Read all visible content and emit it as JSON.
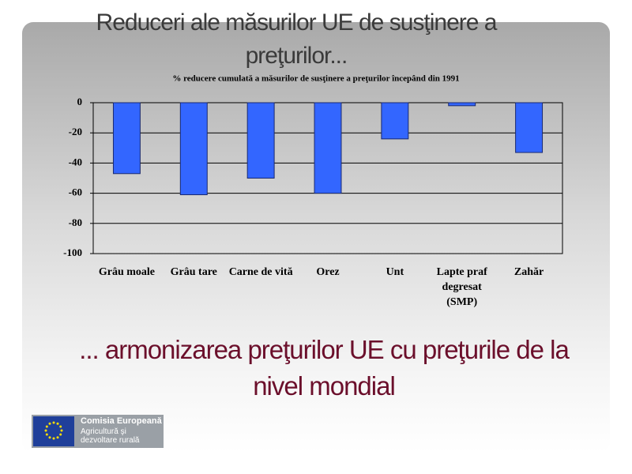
{
  "slide": {
    "title": "Reduceri ale măsurilor UE de susţinere a preţurilor...",
    "caption": "... armonizarea preţurilor UE cu preţurile de la nivel mondial",
    "logo": {
      "name": "Comisia Europeană",
      "lines": [
        "Agricultură şi",
        "dezvoltare rurală"
      ]
    }
  },
  "chart_data": {
    "type": "bar",
    "title": "% reducere cumulată a măsurilor de susţinere a preţurilor începând din 1991",
    "categories": [
      "Grâu moale",
      "Grâu tare",
      "Carne de vită",
      "Orez",
      "Unt",
      "Lapte praf degresat (SMP)",
      "Zahăr"
    ],
    "values": [
      -47,
      -61,
      -50,
      -60,
      -24,
      -2,
      -33
    ],
    "color": "#3366ff",
    "ylim": [
      -100,
      0
    ],
    "yticks": [
      0,
      -20,
      -40,
      -60,
      -80,
      -100
    ],
    "grid": true
  }
}
